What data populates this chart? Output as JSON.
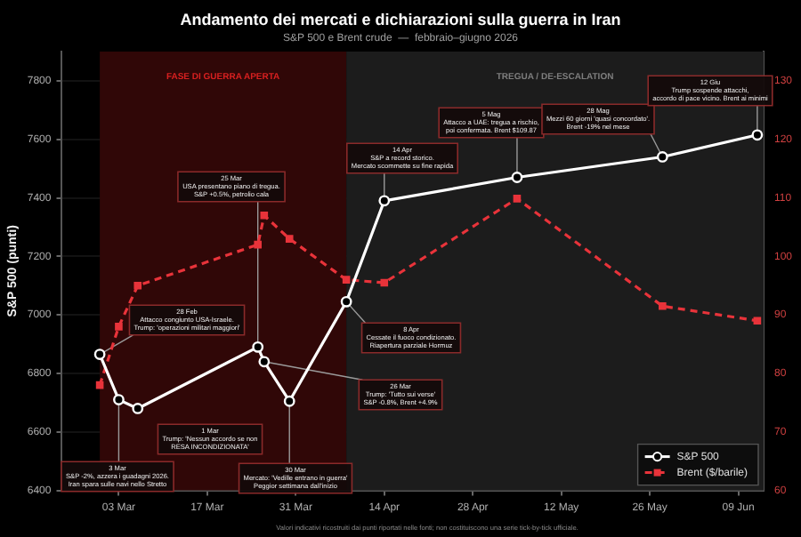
{
  "chart_data": {
    "type": "line",
    "title": "Andamento dei mercati e dichiarazioni sulla guerra in Iran",
    "subtitle": "S&P 500 e Brent crude  —  febbraio–giugno 2026",
    "ylabel": "S&P 500 (punti)",
    "x": [
      "2026-02-28",
      "2026-03-03",
      "2026-03-06",
      "2026-03-25",
      "2026-03-26",
      "2026-03-30",
      "2026-04-08",
      "2026-04-14",
      "2026-05-05",
      "2026-05-28",
      "2026-06-12"
    ],
    "series": [
      {
        "name": "S&P 500",
        "type": "line",
        "color": "#ffffff",
        "marker": "circle",
        "line_style": "solid",
        "values": [
          6865,
          6710,
          6680,
          6890,
          6840,
          6705,
          7045,
          7390,
          7470,
          7540,
          7615
        ]
      },
      {
        "name": "Brent ($/barile)",
        "type": "line",
        "color": "#e8333a",
        "marker": "square",
        "line_style": "dashed",
        "axis": "y2",
        "values": [
          78,
          88,
          95,
          102,
          107,
          103,
          96,
          95.5,
          109.87,
          91.5,
          89
        ]
      }
    ],
    "xlim": [
      "2026-02-22",
      "2026-06-13"
    ],
    "xticks": [
      {
        "value": "2026-03-03",
        "label": "03 Mar"
      },
      {
        "value": "2026-03-17",
        "label": "17 Mar"
      },
      {
        "value": "2026-03-31",
        "label": "31 Mar"
      },
      {
        "value": "2026-04-14",
        "label": "14 Apr"
      },
      {
        "value": "2026-04-28",
        "label": "28 Apr"
      },
      {
        "value": "2026-05-12",
        "label": "12 May"
      },
      {
        "value": "2026-05-26",
        "label": "26 May"
      },
      {
        "value": "2026-06-09",
        "label": "09 Jun"
      }
    ],
    "ylim": [
      6400,
      7900
    ],
    "yticks": [
      6400,
      6600,
      6800,
      7000,
      7200,
      7400,
      7600,
      7800
    ],
    "y2lim": [
      60,
      135
    ],
    "y2ticks": [
      60,
      70,
      80,
      90,
      100,
      110,
      120,
      130
    ],
    "bands": [
      {
        "axis": "x",
        "from": "2026-02-28",
        "to": "2026-04-08",
        "label": "FASE DI GUERRA APERTA",
        "color": "#300707"
      },
      {
        "axis": "x",
        "from": "2026-04-08",
        "to": "2026-06-13",
        "label": "TREGUA / DE-ESCALATION",
        "color": "#1c1c1c"
      }
    ],
    "annotations": [
      {
        "text": "28 Feb\nAttacco congiunto USA-Israele.\nTrump: 'operazioni militari maggiori'",
        "x": "2026-02-28",
        "y": 6865
      },
      "1 Mar\nTrump: 'Nessun accordo se non\nRESA INCONDIZIONATA'",
      {
        "text": "3 Mar\nS&P -2%, azzera i guadagni 2026.\nIran spara sulle navi nello Stretto",
        "x": "2026-03-03",
        "y": 6710
      },
      {
        "text": "25 Mar\nUSA presentano piano di tregua.\nS&P +0.5%, petrolio cala",
        "x": "2026-03-25",
        "y": 6890
      },
      {
        "text": "26 Mar\nTrump: 'Tutto sui verse'\nS&P -0.8%, Brent +4.9%",
        "x": "2026-03-26",
        "y": 6840
      },
      {
        "text": "30 Mar\nMercato: 'Vedille entrano in guerra'\nPeggior settimana dall'inizio",
        "x": "2026-03-30",
        "y": 6705
      },
      {
        "text": "8 Apr\nCessate il fuoco condizionato.\nRiapertura parziale Hormuz",
        "x": "2026-04-08",
        "y": 7045
      },
      {
        "text": "14 Apr\nS&P a record storico.\nMercato scommette su fine rapida",
        "x": "2026-04-14",
        "y": 7390
      },
      {
        "text": "5 Mag\nAttacco a UAE: tregua a rischio,\npoi confermata. Brent $109.87",
        "x": "2026-05-05",
        "y": 7470
      },
      {
        "text": "28 Mag\nMezzi 60 giorni 'quasi concordato'.\nBrent -19% nel mese",
        "x": "2026-05-28",
        "y": 7540
      },
      {
        "text": "12 Giu\nTrump sospende attacchi,\naccordo di pace vicino. Brent ai minimi",
        "x": "2026-06-12",
        "y": 7615
      },
      "Valori indicativi ricostruiti dai punti riportati nelle fonti; non costituiscono una serie tick-by-tick ufficiale."
    ],
    "grid": true,
    "legend": "bottom right"
  }
}
